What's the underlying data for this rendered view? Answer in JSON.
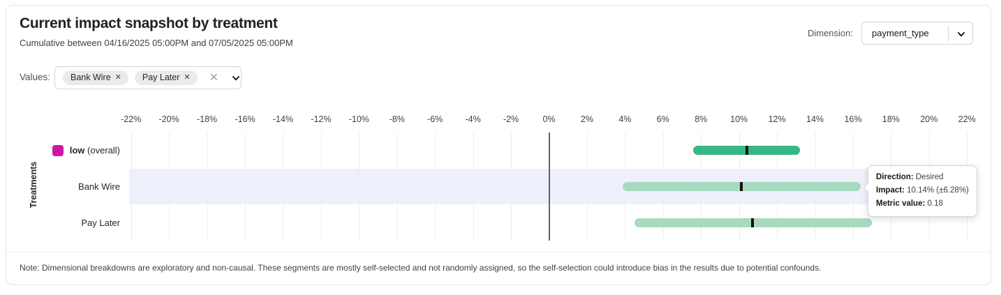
{
  "header": {
    "title": "Current impact snapshot by treatment",
    "subtitle": "Cumulative between 04/16/2025 05:00PM and 07/05/2025 05:00PM",
    "dimension_label": "Dimension:",
    "dimension_value": "payment_type"
  },
  "filters": {
    "values_label": "Values:",
    "chips": [
      {
        "label": "Bank Wire"
      },
      {
        "label": "Pay Later"
      }
    ],
    "remove_icon": "✕",
    "clear_icon": "✕"
  },
  "chart_data": {
    "type": "bar",
    "orientation": "horizontal-interval",
    "ylabel": "Treatments",
    "x_tick_labels": [
      "-22%",
      "-20%",
      "-18%",
      "-16%",
      "-14%",
      "-12%",
      "-10%",
      "-8%",
      "-6%",
      "-4%",
      "-2%",
      "0%",
      "2%",
      "4%",
      "6%",
      "8%",
      "10%",
      "12%",
      "14%",
      "16%",
      "18%",
      "20%",
      "22%"
    ],
    "xlim": [
      -22.1,
      22.1
    ],
    "grid": true,
    "colors": {
      "overall_bar": "#36b784",
      "segment_bar": "#a7dabf",
      "impact_mark": "#101114",
      "legend_overall": "#cb17a3",
      "highlight_band": "#eef0fb"
    },
    "rows": [
      {
        "name": "low",
        "qualifier": "(overall)",
        "bold": true,
        "legend": true,
        "impact": 10.4,
        "ci_low": 7.6,
        "ci_high": 13.2,
        "bar_color": "#36b784",
        "highlighted": false
      },
      {
        "name": "Bank Wire",
        "qualifier": "",
        "bold": false,
        "legend": false,
        "impact": 10.14,
        "ci_low": 3.86,
        "ci_high": 16.42,
        "bar_color": "#a7dabf",
        "highlighted": true
      },
      {
        "name": "Pay Later",
        "qualifier": "",
        "bold": false,
        "legend": false,
        "impact": 10.7,
        "ci_low": 4.5,
        "ci_high": 17.0,
        "bar_color": "#a7dabf",
        "highlighted": false
      }
    ]
  },
  "tooltip": {
    "direction_label": "Direction:",
    "direction_value": "Desired",
    "impact_label": "Impact:",
    "impact_value": "10.14% (±6.28%)",
    "metric_label": "Metric value:",
    "metric_value": "0.18"
  },
  "note": "Note: Dimensional breakdowns are exploratory and non-causal. These segments are mostly self-selected and not randomly assigned, so the self-selection could introduce bias in the results due to potential confounds."
}
